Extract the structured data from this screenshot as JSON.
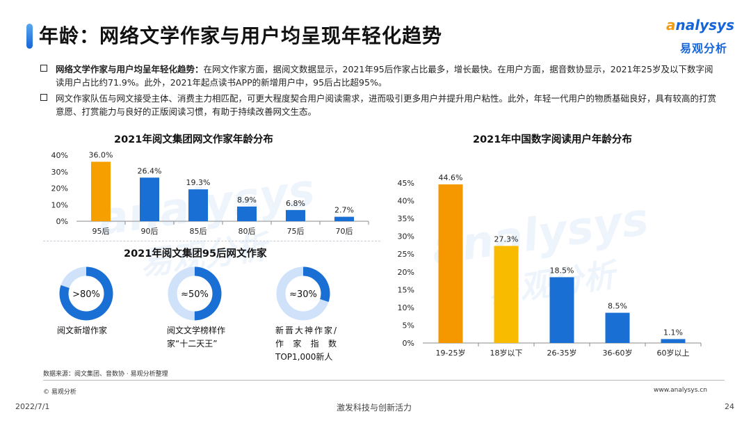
{
  "header": {
    "title": "年龄：网络文学作家与用户均呈现年轻化趋势",
    "logo_en_o": "a",
    "logo_en_rest": "nalysys",
    "logo_cn": "易观分析",
    "accent_color": "#1565d8"
  },
  "bullets": [
    {
      "bold": "网络文学作家与用户均呈年轻化趋势：",
      "text": "在网文作家方面，据阅文数据显示，2021年95后作家占比最多，增长最快。在用户方面，据音数协显示，2021年25岁及以下数字阅读用户占比约71.9%。此外，2021年起点读书APP的新增用户中，95后占比超95%。"
    },
    {
      "bold": "",
      "text": "网文作家队伍与网文接受主体、消费主力相匹配，可更大程度契合用户阅读需求，进而吸引更多用户并提升用户粘性。此外，年轻一代用户的物质基础良好，具有较高的打赏意愿、打赏能力与良好的正版阅读习惯，有助于持续改善网文生态。"
    }
  ],
  "watermark": {
    "en": "analysys",
    "cn": "易观分析"
  },
  "chart_data": [
    {
      "type": "bar",
      "title": "2021年阅文集团网文作家年龄分布",
      "categories": [
        "95后",
        "90后",
        "85后",
        "80后",
        "75后",
        "70后"
      ],
      "values": [
        36.0,
        26.4,
        19.3,
        8.9,
        6.8,
        2.7
      ],
      "labels": [
        "36.0%",
        "26.4%",
        "19.3%",
        "8.9%",
        "6.8%",
        "2.7%"
      ],
      "colors": [
        "#f5a000",
        "#1a6fd4",
        "#1a6fd4",
        "#1a6fd4",
        "#1a6fd4",
        "#1a6fd4"
      ],
      "yticks": [
        "0%",
        "10%",
        "20%",
        "30%",
        "40%"
      ],
      "ylim": [
        0,
        40
      ],
      "grid": false
    },
    {
      "type": "pie",
      "title": "2021年阅文集团95后网文作家",
      "items": [
        {
          "center": ">80%",
          "value": 80,
          "label": "阅文新增作家"
        },
        {
          "center": "≈50%",
          "value": 50,
          "label": "阅文文学榜样作家“十二天王”"
        },
        {
          "center": "≈30%",
          "value": 30,
          "label": "新晋大神作家/作家指数TOP1,000新人"
        }
      ],
      "colors": {
        "fill": "#1a6fd4",
        "track": "#cfe2fa"
      }
    },
    {
      "type": "bar",
      "title": "2021年中国数字阅读用户年龄分布",
      "categories": [
        "19-25岁",
        "18岁以下",
        "26-35岁",
        "36-60岁",
        "60岁以上"
      ],
      "values": [
        44.6,
        27.3,
        18.5,
        8.5,
        1.1
      ],
      "labels": [
        "44.6%",
        "27.3%",
        "18.5%",
        "8.5%",
        "1.1%"
      ],
      "colors": [
        "#f59800",
        "#f8bb00",
        "#1a6fd4",
        "#1a6fd4",
        "#1a6fd4"
      ],
      "yticks": [
        "0%",
        "5%",
        "10%",
        "15%",
        "20%",
        "25%",
        "30%",
        "35%",
        "40%",
        "45%"
      ],
      "ylim": [
        0,
        45
      ],
      "grid": false
    }
  ],
  "footer": {
    "source": "数据来源：阅文集团、音数协 · 易观分析整理",
    "copyright": "© 易观分析",
    "website": "www.analysys.cn",
    "date": "2022/7/1",
    "slogan": "激发科技与创新活力",
    "page": "24"
  }
}
